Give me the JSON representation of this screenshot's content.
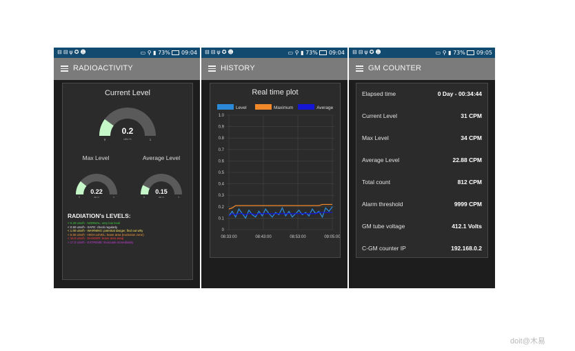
{
  "status_bar": {
    "left_icons": [
      "⊟",
      "⊟",
      "ψ",
      "✪",
      "☻"
    ],
    "right_icons": [
      "▭",
      "⚲",
      "▮"
    ],
    "battery": "73%",
    "times": [
      "09:04",
      "09:04",
      "09:05"
    ]
  },
  "screens": {
    "radioactivity": {
      "title": "RADIOACTIVITY",
      "current": {
        "title": "Current Level",
        "value": "0.2",
        "unit": "uSv / h",
        "min": "0",
        "max": "1",
        "level": 0.2
      },
      "max": {
        "title": "Max Level",
        "value": "0.22",
        "unit": "uSv / h",
        "min": "0",
        "max": "1",
        "level": 0.22
      },
      "average": {
        "title": "Average Level",
        "value": "0.15",
        "unit": "uSv / h",
        "min": "0",
        "max": "1",
        "level": 0.15
      },
      "levels_title": "RADIATION's LEVELS:",
      "levels": [
        {
          "text": "< 0.20 uSv/h - NORMAL: very low level",
          "color": "#3fd13f"
        },
        {
          "text": "< 0.50 uSv/h - SAFE: check regularly",
          "color": "#e9e9e9"
        },
        {
          "text": "< 1.00 uSv/h - WARNING: potential danger, find out why",
          "color": "#ffe45c"
        },
        {
          "text": "< 6.50 uSv/h - HIGH LEVEL: leave area (exclusion zone)",
          "color": "#ff9a3a"
        },
        {
          "text": "< 16.5 uSv/h - DANGER: leave area asap",
          "color": "#ff3c3c"
        },
        {
          "text": "> 17.0 uSv/h - EXTREME: Evacuate immediately",
          "color": "#c43fd6"
        }
      ],
      "gauge_fill": "#c6f7c8",
      "gauge_track": "#5a5a5a"
    },
    "history": {
      "title": "HISTORY",
      "chart_title": "Real time plot"
    },
    "gm_counter": {
      "title": "GM COUNTER",
      "rows": [
        {
          "label": "Elapsed time",
          "value": "0 Day - 00:34:44"
        },
        {
          "label": "Current Level",
          "value": "31 CPM"
        },
        {
          "label": "Max Level",
          "value": "34 CPM"
        },
        {
          "label": "Average Level",
          "value": "22.88 CPM"
        },
        {
          "label": "Total count",
          "value": "812 CPM"
        },
        {
          "label": "Alarm threshold",
          "value": "9999 CPM"
        },
        {
          "label": "GM tube voltage",
          "value": "412.1 Volts"
        },
        {
          "label": "C-GM counter IP",
          "value": "192.168.0.2"
        }
      ]
    }
  },
  "chart_data": {
    "type": "line",
    "title": "Real time plot",
    "xlabel": "",
    "ylabel": "",
    "ylim": [
      0,
      1.0
    ],
    "yticks": [
      "0",
      "0.1",
      "0.2",
      "0.3",
      "0.4",
      "0.5",
      "0.6",
      "0.7",
      "0.8",
      "0.9",
      "1.0"
    ],
    "xticks": [
      "08:33:00",
      "08:43:00",
      "08:53:00",
      "09:05:00"
    ],
    "grid": true,
    "legend_position": "top",
    "series": [
      {
        "name": "Level",
        "color": "#2b8ad8",
        "values": [
          0.12,
          0.16,
          0.11,
          0.18,
          0.14,
          0.1,
          0.17,
          0.13,
          0.11,
          0.16,
          0.12,
          0.18,
          0.14,
          0.11,
          0.15,
          0.13,
          0.19,
          0.12,
          0.16,
          0.11,
          0.14,
          0.17,
          0.13,
          0.15,
          0.12,
          0.18,
          0.14,
          0.16,
          0.11,
          0.19,
          0.16,
          0.2
        ]
      },
      {
        "name": "Maximum",
        "color": "#f0882a",
        "values": [
          0.18,
          0.19,
          0.21,
          0.21,
          0.21,
          0.21,
          0.21,
          0.21,
          0.21,
          0.21,
          0.21,
          0.21,
          0.21,
          0.21,
          0.21,
          0.21,
          0.21,
          0.21,
          0.21,
          0.21,
          0.21,
          0.21,
          0.21,
          0.21,
          0.21,
          0.21,
          0.21,
          0.21,
          0.22,
          0.22,
          0.22,
          0.22
        ]
      },
      {
        "name": "Average",
        "color": "#1515d6",
        "values": [
          0.12,
          0.14,
          0.13,
          0.14,
          0.14,
          0.13,
          0.14,
          0.14,
          0.13,
          0.14,
          0.14,
          0.14,
          0.14,
          0.14,
          0.14,
          0.14,
          0.14,
          0.14,
          0.14,
          0.14,
          0.14,
          0.14,
          0.14,
          0.14,
          0.14,
          0.14,
          0.14,
          0.15,
          0.15,
          0.15,
          0.15,
          0.15
        ]
      }
    ]
  },
  "watermark": "doit@木易"
}
